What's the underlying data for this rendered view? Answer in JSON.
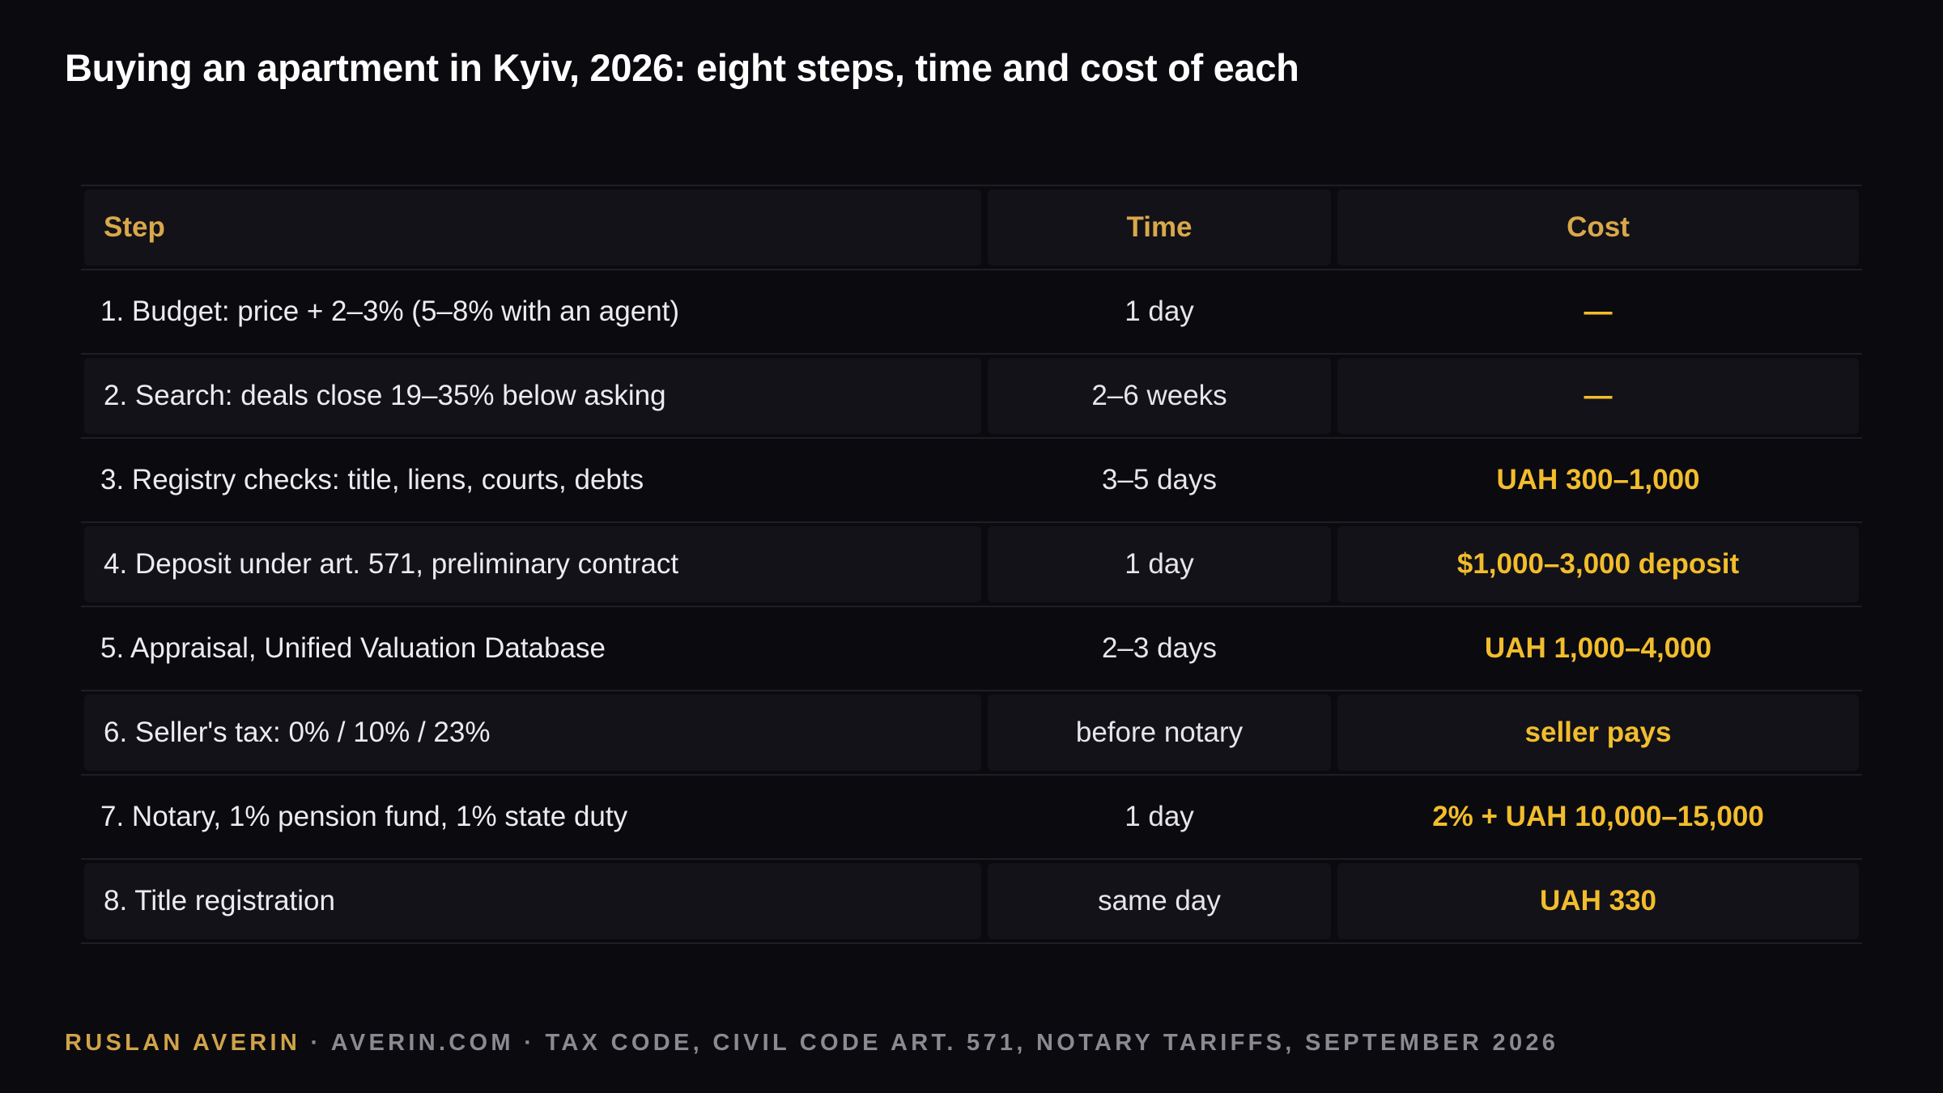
{
  "title": "Buying an apartment in Kyiv, 2026: eight steps, time and cost of each",
  "table": {
    "headers": {
      "step": "Step",
      "time": "Time",
      "cost": "Cost"
    },
    "rows": [
      {
        "step": "1. Budget: price + 2–3% (5–8% with an agent)",
        "time": "1 day",
        "cost": "—"
      },
      {
        "step": "2. Search: deals close 19–35% below asking",
        "time": "2–6 weeks",
        "cost": "—"
      },
      {
        "step": "3. Registry checks: title, liens, courts, debts",
        "time": "3–5 days",
        "cost": "UAH 300–1,000"
      },
      {
        "step": "4. Deposit under art. 571, preliminary contract",
        "time": "1 day",
        "cost": "$1,000–3,000 deposit"
      },
      {
        "step": "5. Appraisal, Unified Valuation Database",
        "time": "2–3 days",
        "cost": "UAH 1,000–4,000"
      },
      {
        "step": "6. Seller's tax: 0% / 10% / 23%",
        "time": "before notary",
        "cost": "seller pays"
      },
      {
        "step": "7. Notary, 1% pension fund, 1% state duty",
        "time": "1 day",
        "cost": "2% + UAH 10,000–15,000"
      },
      {
        "step": "8. Title registration",
        "time": "same day",
        "cost": "UAH 330"
      }
    ]
  },
  "footer": {
    "author": "RUSLAN AVERIN",
    "sources": " · AVERIN.COM · TAX CODE, CIVIL CODE ART. 571, NOTARY TARIFFS, SEPTEMBER 2026"
  },
  "colors": {
    "background": "#0b0a0f",
    "accent": "#f2bd2c",
    "header_text": "#d9a84a",
    "row_shade": "#131218"
  }
}
